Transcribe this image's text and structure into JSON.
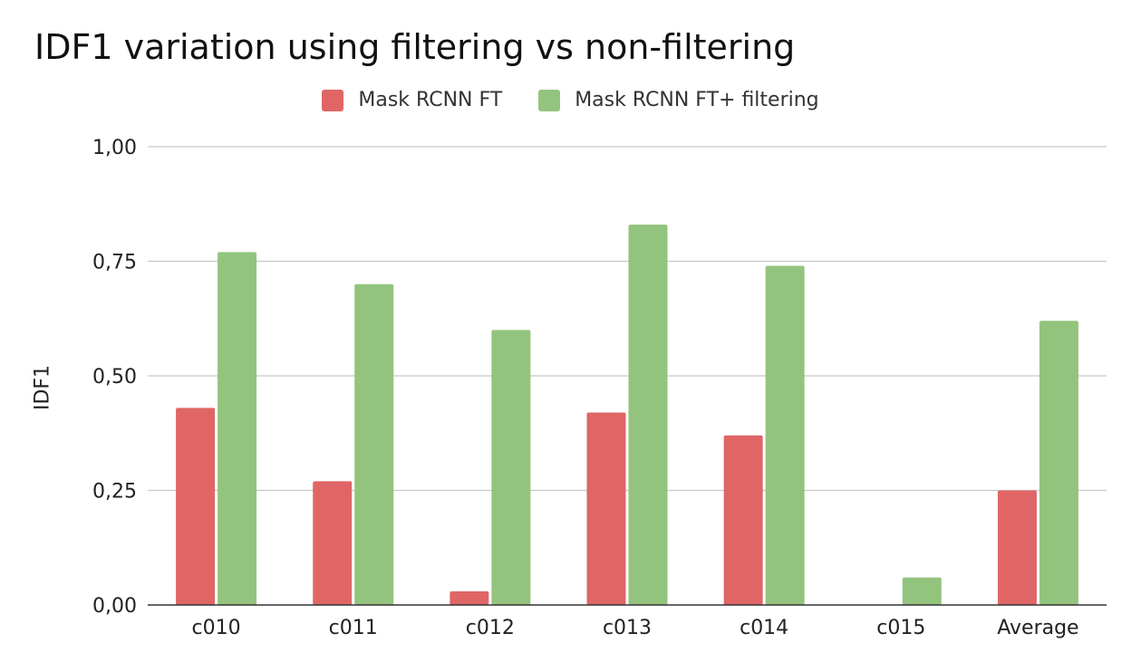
{
  "chart_data": {
    "type": "bar",
    "title": "IDF1 variation using filtering vs non-filtering",
    "xlabel": "",
    "ylabel": "IDF1",
    "categories": [
      "c010",
      "c011",
      "c012",
      "c013",
      "c014",
      "c015",
      "Average"
    ],
    "series": [
      {
        "name": "Mask RCNN FT",
        "color": "#e06666",
        "values": [
          0.43,
          0.27,
          0.03,
          0.42,
          0.37,
          0.0,
          0.25
        ]
      },
      {
        "name": "Mask RCNN FT+ filtering",
        "color": "#93c47d",
        "values": [
          0.77,
          0.7,
          0.6,
          0.83,
          0.74,
          0.06,
          0.62
        ]
      }
    ],
    "ylim": [
      0,
      1
    ],
    "yticks": [
      "0,00",
      "0,25",
      "0,50",
      "0,75",
      "1,00"
    ],
    "grid": true,
    "legend_position": "top"
  }
}
